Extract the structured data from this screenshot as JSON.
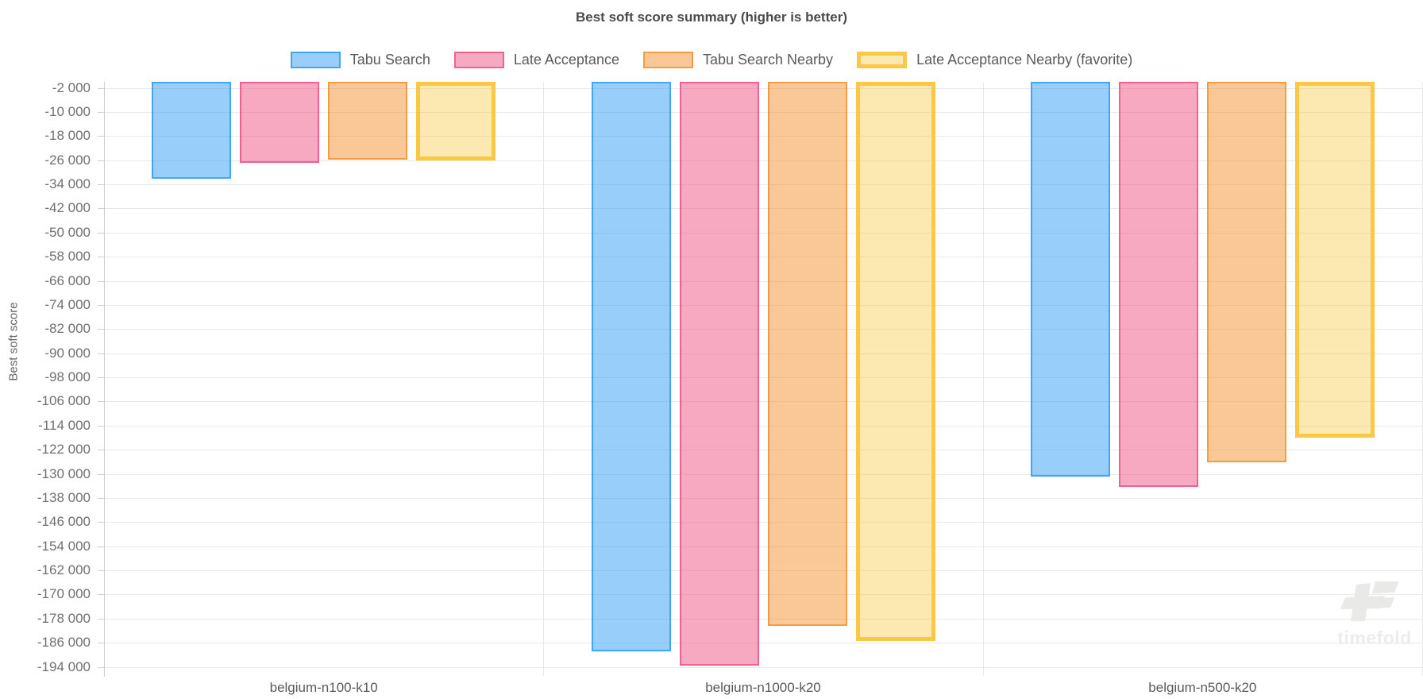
{
  "title": "Best soft score summary (higher is better)",
  "watermark": {
    "text": "timefold"
  },
  "y_axis": {
    "label": "Best soft score"
  },
  "chart_data": {
    "type": "bar",
    "title": "Best soft score summary (higher is better)",
    "ylabel": "Best soft score",
    "xlabel": "",
    "categories": [
      "belgium-n100-k10",
      "belgium-n1000-k20",
      "belgium-n500-k20"
    ],
    "series": [
      {
        "name": "Tabu Search",
        "fill": "rgba(66,165,245,0.55)",
        "border": "#42A5F5",
        "favorite": false,
        "values": [
          -32000,
          -188800,
          -131000
        ]
      },
      {
        "name": "Late Acceptance",
        "fill": "rgba(242,98,143,0.55)",
        "border": "#F2628F",
        "favorite": false,
        "values": [
          -26800,
          -193500,
          -134200
        ]
      },
      {
        "name": "Tabu Search Nearby",
        "fill": "rgba(245,155,66,0.55)",
        "border": "#F59B42",
        "favorite": false,
        "values": [
          -25900,
          -180300,
          -126200
        ]
      },
      {
        "name": "Late Acceptance Nearby (favorite)",
        "fill": "rgba(249,200,70,0.42)",
        "border": "#F9C846",
        "favorite": true,
        "values": [
          -26200,
          -185500,
          -117900
        ]
      }
    ],
    "ylim": [
      -197000,
      0
    ],
    "yticks": {
      "values": [
        -2000,
        -10000,
        -18000,
        -26000,
        -34000,
        -42000,
        -50000,
        -58000,
        -66000,
        -74000,
        -82000,
        -90000,
        -98000,
        -106000,
        -114000,
        -122000,
        -130000,
        -138000,
        -146000,
        -154000,
        -162000,
        -170000,
        -178000,
        -186000,
        -194000
      ],
      "labels": [
        "-2 000",
        "-10 000",
        "-18 000",
        "-26 000",
        "-34 000",
        "-42 000",
        "-50 000",
        "-58 000",
        "-66 000",
        "-74 000",
        "-82 000",
        "-90 000",
        "-98 000",
        "-106 000",
        "-114 000",
        "-122 000",
        "-130 000",
        "-138 000",
        "-146 000",
        "-154 000",
        "-162 000",
        "-170 000",
        "-178 000",
        "-186 000",
        "-194 000"
      ]
    },
    "legend_position": "top",
    "grid": true
  }
}
